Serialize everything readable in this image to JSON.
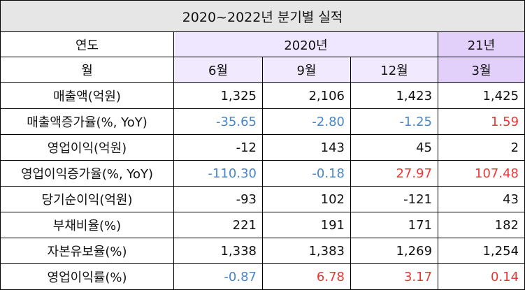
{
  "title": "2020~2022년 분기별 실적",
  "header": {
    "year_label": "연도",
    "month_label": "월",
    "year_2020": "2020년",
    "year_21": "21년",
    "months": [
      "6월",
      "9월",
      "12월",
      "3월"
    ]
  },
  "rows": [
    {
      "label": "매출액(억원)",
      "values": [
        "1,325",
        "2,106",
        "1,423",
        "1,425"
      ],
      "colors": [
        "",
        "",
        "",
        ""
      ]
    },
    {
      "label": "매출액증가율(%, YoY)",
      "values": [
        "-35.65",
        "-2.80",
        "-1.25",
        "1.59"
      ],
      "colors": [
        "blue",
        "blue",
        "blue",
        "red"
      ]
    },
    {
      "label": "영업이익(억원)",
      "values": [
        "-12",
        "143",
        "45",
        "2"
      ],
      "colors": [
        "",
        "",
        "",
        ""
      ]
    },
    {
      "label": "영업이익증가율(%, YoY)",
      "values": [
        "-110.30",
        "-0.18",
        "27.97",
        "107.48"
      ],
      "colors": [
        "blue",
        "blue",
        "red",
        "red"
      ]
    },
    {
      "label": "당기순이익(억원)",
      "values": [
        "-93",
        "102",
        "-121",
        "43"
      ],
      "colors": [
        "",
        "",
        "",
        ""
      ]
    },
    {
      "label": "부채비율(%)",
      "values": [
        "221",
        "191",
        "171",
        "182"
      ],
      "colors": [
        "",
        "",
        "",
        ""
      ]
    },
    {
      "label": "자본유보율(%)",
      "values": [
        "1,338",
        "1,383",
        "1,269",
        "1,254"
      ],
      "colors": [
        "",
        "",
        "",
        ""
      ]
    },
    {
      "label": "영업이익률(%)",
      "values": [
        "-0.87",
        "6.78",
        "3.17",
        "0.14"
      ],
      "colors": [
        "blue",
        "red",
        "red",
        "red"
      ]
    }
  ]
}
